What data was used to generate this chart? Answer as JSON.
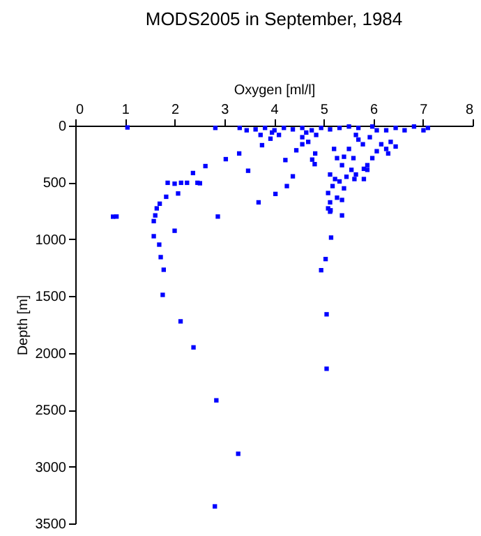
{
  "chart_data": {
    "type": "scatter",
    "title": "MODS2005 in September, 1984",
    "xlabel": "Oxygen [ml/l]",
    "ylabel": "Depth [m]",
    "xlim": [
      0,
      8
    ],
    "xticks": [
      0,
      1,
      2,
      3,
      4,
      5,
      6,
      7,
      8
    ],
    "ylim": [
      3500,
      0
    ],
    "yticks": [
      0,
      500,
      1000,
      1500,
      2000,
      2500,
      3000,
      3500
    ],
    "marker": "square",
    "grid": false,
    "series": [
      {
        "color": "#0000ff",
        "x": [
          0.76,
          0.83,
          1.61,
          2.87,
          1.58,
          2.0,
          1.58,
          1.69,
          1.72,
          1.78,
          1.76,
          2.12,
          2.38,
          2.84,
          3.28,
          2.81,
          5.14,
          5.37,
          5.15,
          5.04,
          4.95,
          5.06,
          5.06,
          1.05,
          2.82,
          3.03,
          3.3,
          2.62,
          2.37,
          1.86,
          2.0,
          2.13,
          2.25,
          2.46,
          2.51,
          2.07,
          1.83,
          1.7,
          1.64,
          3.48,
          3.69,
          4.03,
          4.26,
          4.38,
          4.23,
          4.45,
          4.57,
          3.76,
          3.93,
          4.77,
          4.82,
          4.83,
          4.69,
          5.21,
          5.27,
          5.41,
          5.51,
          5.37,
          5.56,
          5.65,
          5.81,
          5.88,
          5.98,
          6.07,
          6.16,
          6.26,
          6.35,
          6.45,
          6.3,
          5.7,
          5.79,
          5.93,
          5.6,
          5.13,
          5.23,
          5.32,
          5.18,
          5.41,
          5.09,
          5.27,
          5.13,
          5.37,
          5.09,
          5.13,
          5.46,
          5.62,
          5.81,
          5.88,
          3.31,
          3.45,
          3.63,
          3.82,
          4.01,
          4.2,
          4.38,
          4.57,
          4.76,
          4.95,
          5.13,
          5.32,
          5.51,
          5.7,
          5.98,
          6.26,
          6.45,
          6.63,
          6.82,
          7.1,
          3.73,
          4.1,
          4.57,
          4.85,
          5.65,
          6.07,
          7.01,
          3.96,
          4.65
        ],
        "values": [
          801,
          800,
          790,
          800,
          840,
          925,
          973,
          1047,
          1157,
          1268,
          1489,
          1722,
          1951,
          2417,
          2887,
          3350,
          745,
          790,
          985,
          1174,
          1272,
          1660,
          2139,
          16,
          20,
          295,
          245,
          356,
          417,
          503,
          511,
          503,
          503,
          503,
          507,
          597,
          626,
          687,
          728,
          397,
          675,
          601,
          532,
          446,
          303,
          217,
          164,
          172,
          115,
          299,
          339,
          245,
          143,
          205,
          286,
          274,
          205,
          348,
          389,
          430,
          380,
          348,
          286,
          225,
          164,
          205,
          143,
          184,
          245,
          123,
          164,
          102,
          286,
          430,
          470,
          491,
          532,
          552,
          593,
          634,
          675,
          654,
          728,
          757,
          450,
          470,
          470,
          389,
          20,
          41,
          33,
          20,
          41,
          20,
          33,
          20,
          41,
          20,
          33,
          20,
          8,
          20,
          8,
          41,
          20,
          41,
          8,
          20,
          82,
          82,
          102,
          82,
          82,
          41,
          41,
          61,
          61
        ]
      }
    ]
  }
}
